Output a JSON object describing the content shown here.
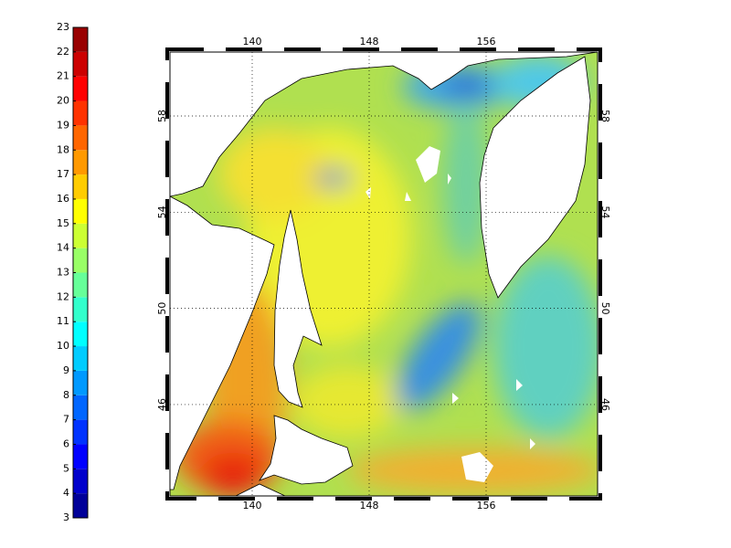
{
  "colorbar": {
    "ticks": [
      3,
      4,
      5,
      6,
      7,
      8,
      9,
      10,
      11,
      12,
      13,
      14,
      15,
      16,
      17,
      18,
      19,
      20,
      21,
      22,
      23
    ]
  },
  "map": {
    "lon_ticks": [
      140,
      148,
      156
    ],
    "lat_ticks": [
      58,
      54,
      50,
      46
    ]
  }
}
